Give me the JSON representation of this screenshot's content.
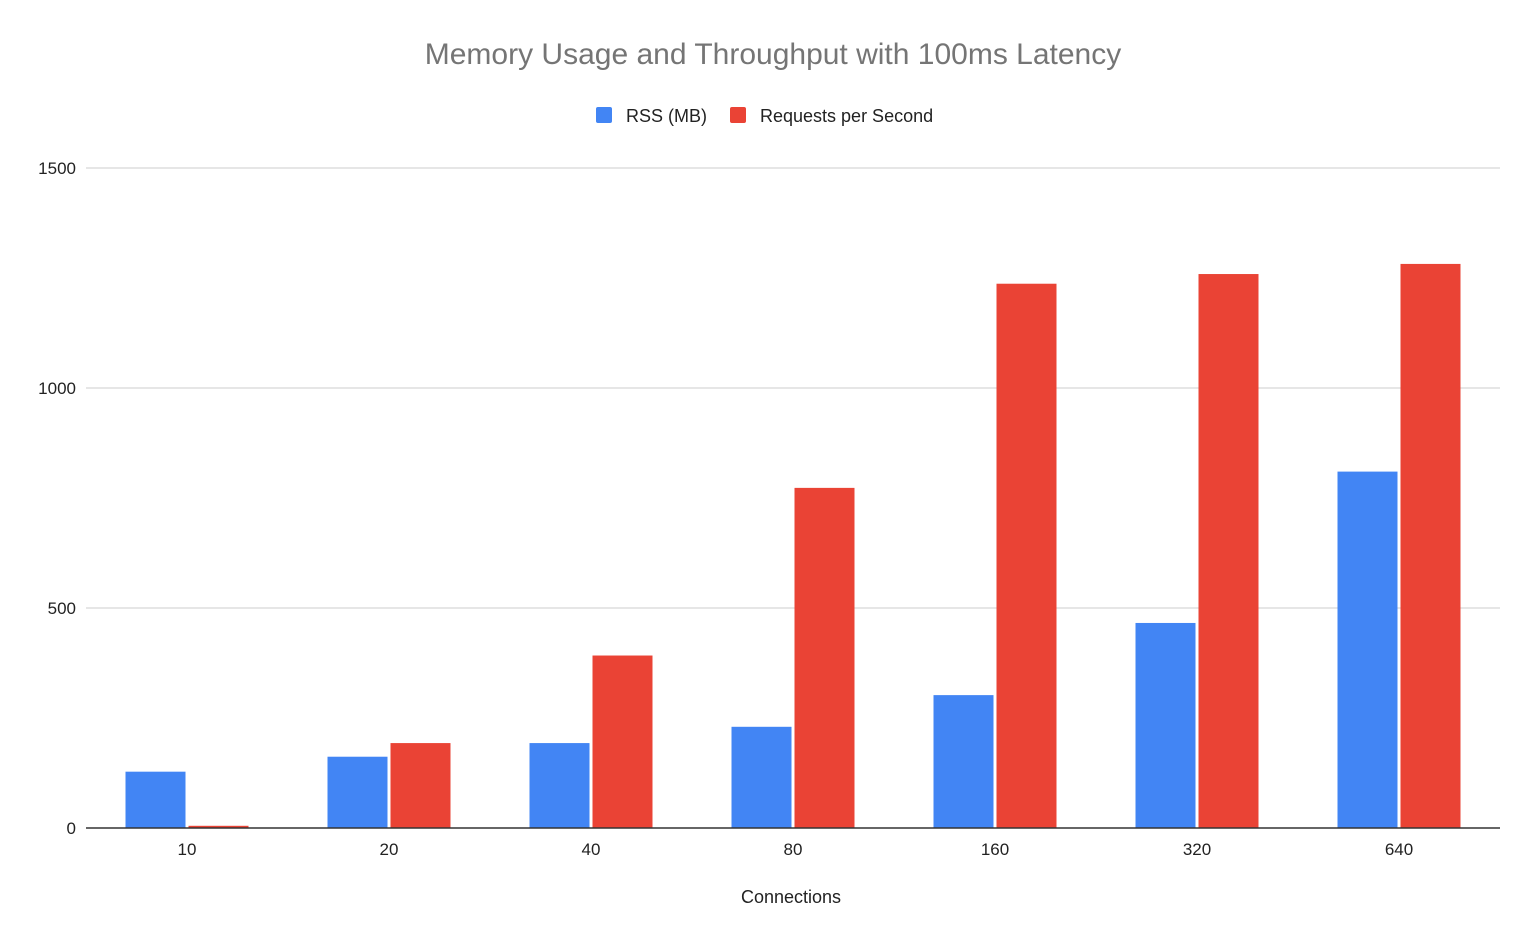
{
  "chart_data": {
    "type": "bar",
    "title": "Memory Usage and Throughput with 100ms Latency",
    "xlabel": "Connections",
    "ylabel": "",
    "categories": [
      "10",
      "20",
      "40",
      "80",
      "160",
      "320",
      "640"
    ],
    "series": [
      {
        "name": "RSS (MB)",
        "color": "#4285f4",
        "values": [
          128,
          162,
          193,
          230,
          302,
          466,
          810
        ]
      },
      {
        "name": "Requests per Second",
        "color": "#ea4335",
        "values": [
          5,
          193,
          392,
          773,
          1237,
          1259,
          1282
        ]
      }
    ],
    "ylim": [
      0,
      1500
    ],
    "yticks": [
      "0",
      "500",
      "1000",
      "1500"
    ],
    "grid": true,
    "legend_position": "top-center"
  }
}
